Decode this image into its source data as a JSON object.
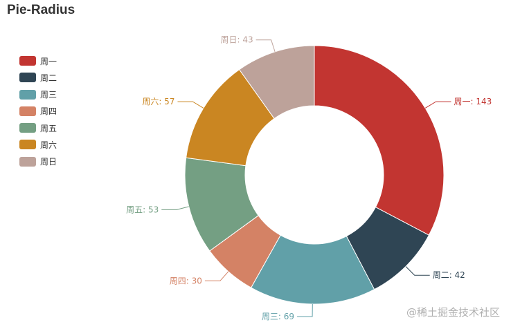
{
  "chart_data": {
    "type": "pie",
    "title": "Pie-Radius",
    "variant": "donut",
    "legend_position": "left",
    "categories": [
      "周一",
      "周二",
      "周三",
      "周四",
      "周五",
      "周六",
      "周日"
    ],
    "values": [
      143,
      42,
      69,
      30,
      53,
      57,
      43
    ],
    "colors": [
      "#c23531",
      "#2f4554",
      "#61a0a8",
      "#d48265",
      "#749f83",
      "#ca8622",
      "#bda29a"
    ],
    "label_format": "{name}: {value}"
  },
  "watermark": "@稀土掘金技术社区"
}
